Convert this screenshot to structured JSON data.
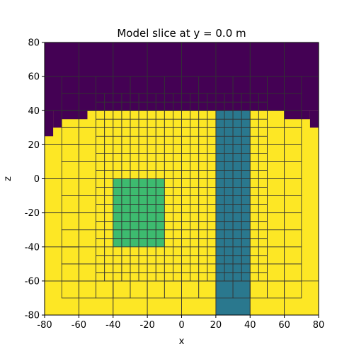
{
  "chart_data": {
    "type": "heatmap",
    "title": "Model slice at y = 0.0 m",
    "xlabel": "x",
    "ylabel": "z",
    "xlim": [
      -80,
      80
    ],
    "ylim": [
      -80,
      80
    ],
    "xticks": [
      "-80",
      "-60",
      "-40",
      "-20",
      "0",
      "20",
      "40",
      "60",
      "80"
    ],
    "yticks": [
      "-80",
      "-60",
      "-40",
      "-20",
      "0",
      "20",
      "40",
      "60",
      "80"
    ],
    "grid": false,
    "colors": {
      "air": "#440154",
      "background": "#fde725",
      "block": "#3dbb6f",
      "pipe": "#2a788e",
      "cell_edges": "#333333"
    },
    "regions": [
      {
        "name": "background",
        "x": [
          -80,
          80
        ],
        "z": [
          -80,
          40
        ]
      },
      {
        "name": "air",
        "x": [
          -80,
          80
        ],
        "z": [
          40,
          80
        ]
      },
      {
        "name": "air",
        "x": [
          -80,
          -75
        ],
        "z": [
          25,
          40
        ]
      },
      {
        "name": "air",
        "x": [
          -75,
          -70
        ],
        "z": [
          30,
          40
        ]
      },
      {
        "name": "air",
        "x": [
          -70,
          -55
        ],
        "z": [
          35,
          40
        ]
      },
      {
        "name": "air",
        "x": [
          60,
          75
        ],
        "z": [
          35,
          40
        ]
      },
      {
        "name": "air",
        "x": [
          75,
          80
        ],
        "z": [
          30,
          40
        ]
      },
      {
        "name": "block",
        "x": [
          -40,
          -10
        ],
        "z": [
          -40,
          0
        ]
      },
      {
        "name": "pipe",
        "x": [
          20,
          40
        ],
        "z": [
          -80,
          40
        ]
      }
    ]
  }
}
